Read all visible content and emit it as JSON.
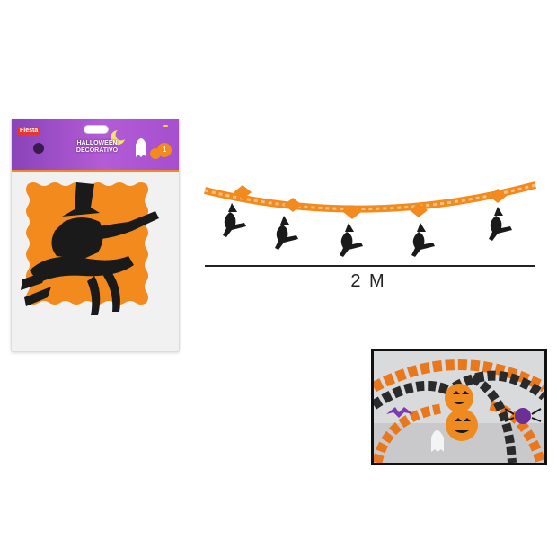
{
  "package": {
    "brand": "Fiesta",
    "price_tag": "",
    "title": "HALLOWEEN DECORATIVO",
    "quantity": "1"
  },
  "garland": {
    "length_label": "2 M",
    "witch_count": 5
  },
  "colors": {
    "orange": "#f28a1d",
    "black": "#1a1a1a",
    "purple": "#9c4fcc"
  }
}
